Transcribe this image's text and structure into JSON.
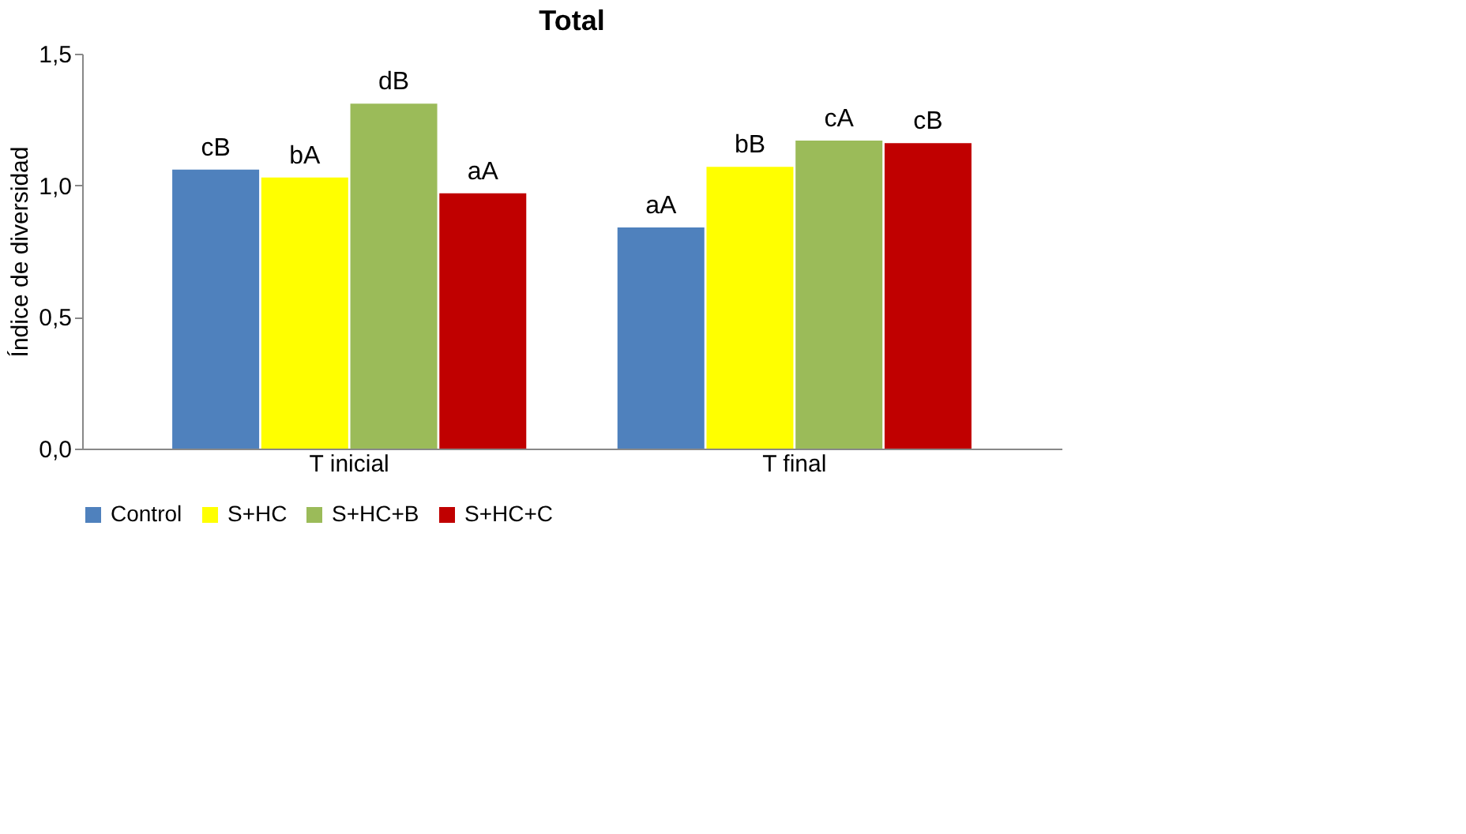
{
  "chart_data": {
    "type": "bar",
    "title": "Total",
    "ylabel": "Índice de diversidad",
    "categories": [
      "T inicial",
      "T final"
    ],
    "series": [
      {
        "name": "Control",
        "color": "#4f81bd",
        "values": [
          1.06,
          0.84
        ],
        "value_labels": [
          "cB",
          "aA"
        ]
      },
      {
        "name": "S+HC",
        "color": "#ffff00",
        "values": [
          1.03,
          1.07
        ],
        "value_labels": [
          "bA",
          "bB"
        ]
      },
      {
        "name": "S+HC+B",
        "color": "#9bbb59",
        "values": [
          1.31,
          1.17
        ],
        "value_labels": [
          "dB",
          "cA"
        ]
      },
      {
        "name": "S+HC+C",
        "color": "#c00000",
        "values": [
          0.97,
          1.16
        ],
        "value_labels": [
          "aA",
          "cB"
        ]
      }
    ],
    "ylim": [
      0,
      1.5
    ],
    "yticks": [
      {
        "value": 0,
        "label": "0,0"
      },
      {
        "value": 0.5,
        "label": "0,5"
      },
      {
        "value": 1,
        "label": "1,0"
      },
      {
        "value": 1.5,
        "label": "1,5"
      }
    ],
    "grid": false,
    "legend": "bottom"
  }
}
